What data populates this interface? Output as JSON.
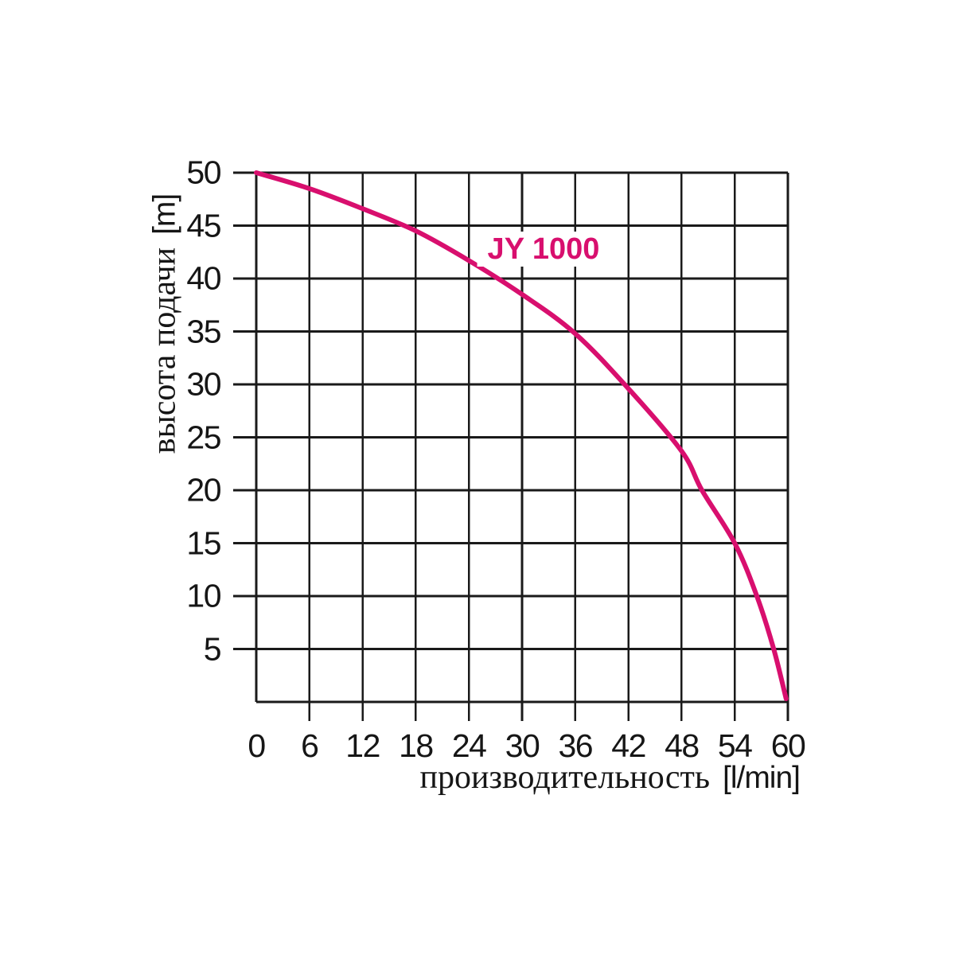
{
  "chart_data": {
    "type": "line",
    "title": "",
    "series": [
      {
        "name": "JY 1000",
        "color": "#d80f6e",
        "points": [
          [
            0,
            50
          ],
          [
            6,
            48.5
          ],
          [
            12,
            46.6
          ],
          [
            18,
            44.5
          ],
          [
            24,
            41.7
          ],
          [
            30,
            38.5
          ],
          [
            36,
            34.8
          ],
          [
            42,
            29.6
          ],
          [
            48,
            23.7
          ],
          [
            50.3,
            20
          ],
          [
            54,
            15
          ],
          [
            56.5,
            10
          ],
          [
            58.4,
            5
          ],
          [
            59.8,
            0.3
          ]
        ]
      }
    ],
    "xlabel": "производительность",
    "x_unit": "[l/min]",
    "ylabel": "высота подачи",
    "y_unit": "[m]",
    "x_ticks": [
      0,
      6,
      12,
      18,
      24,
      30,
      36,
      42,
      48,
      54,
      60
    ],
    "y_ticks": [
      5,
      10,
      15,
      20,
      25,
      30,
      35,
      40,
      45,
      50
    ],
    "xlim": [
      0,
      60
    ],
    "ylim": [
      0,
      50
    ],
    "grid": true,
    "grid_color": "#1a1a1a",
    "background": "#ffffff",
    "legend_position": "inside-top"
  }
}
